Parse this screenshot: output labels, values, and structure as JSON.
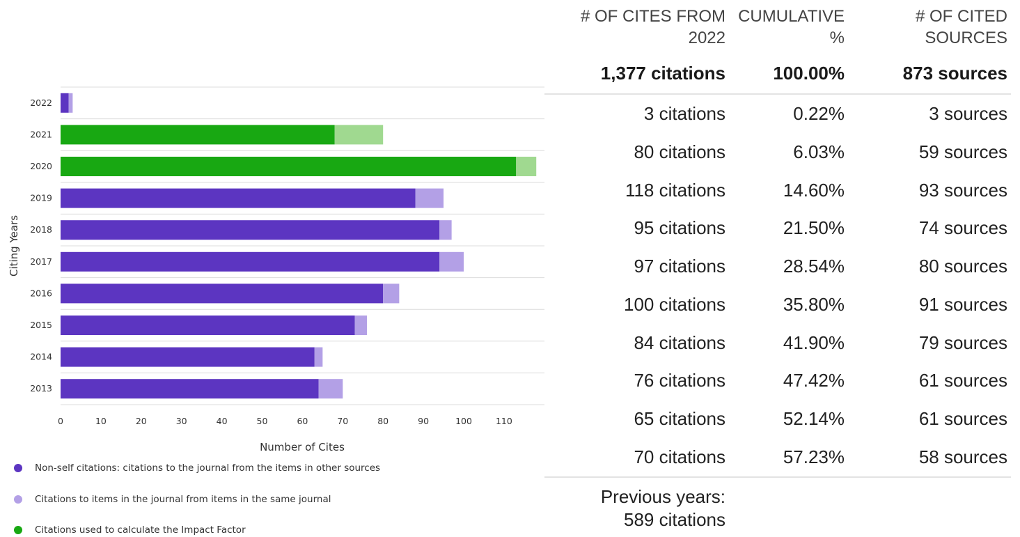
{
  "chart_data": {
    "type": "bar",
    "orientation": "horizontal",
    "stacked": true,
    "categories": [
      "2022",
      "2021",
      "2020",
      "2019",
      "2018",
      "2017",
      "2016",
      "2015",
      "2014",
      "2013"
    ],
    "series": [
      {
        "name": "Non-self citations: citations to the journal from the items in other sources",
        "values": [
          2,
          68,
          113,
          88,
          94,
          94,
          80,
          73,
          63,
          64
        ]
      },
      {
        "name": "Citations to items in the journal from items in the same journal",
        "values": [
          1,
          12,
          5,
          7,
          3,
          6,
          4,
          3,
          2,
          6
        ]
      }
    ],
    "impact_factor_years": [
      "2021",
      "2020"
    ],
    "xlabel": "Number of Cites",
    "ylabel": "Citing Years",
    "xlim": [
      0,
      120
    ],
    "xticks": [
      0,
      10,
      20,
      30,
      40,
      50,
      60,
      70,
      80,
      90,
      100,
      110
    ],
    "grid": "horizontal",
    "legend_position": "bottom-left"
  },
  "colors": {
    "non_self": "#5c35c1",
    "self": "#b3a0e6",
    "impact_factor": "#18a812",
    "impact_factor_self": "#a0d990"
  },
  "legend": [
    {
      "color_key": "non_self",
      "label": "Non-self citations: citations to the journal from the items in other sources"
    },
    {
      "color_key": "self",
      "label": "Citations to items in the journal from items in the same journal"
    },
    {
      "color_key": "impact_factor",
      "label": "Citations used to calculate the Impact Factor"
    }
  ],
  "table": {
    "headers": {
      "cites_line1": "# OF CITES FROM",
      "cites_line2": "2022",
      "cumulative_line1": "CUMULATIVE",
      "cumulative_line2": "%",
      "sources_line1": "# OF CITED",
      "sources_line2": "SOURCES"
    },
    "totals": {
      "cites": "1,377 citations",
      "cumulative": "100.00%",
      "sources": "873 sources"
    },
    "rows": [
      {
        "cites": "3 citations",
        "cumulative": "0.22%",
        "sources": "3 sources"
      },
      {
        "cites": "80 citations",
        "cumulative": "6.03%",
        "sources": "59 sources"
      },
      {
        "cites": "118 citations",
        "cumulative": "14.60%",
        "sources": "93 sources"
      },
      {
        "cites": "95 citations",
        "cumulative": "21.50%",
        "sources": "74 sources"
      },
      {
        "cites": "97 citations",
        "cumulative": "28.54%",
        "sources": "80 sources"
      },
      {
        "cites": "100 citations",
        "cumulative": "35.80%",
        "sources": "91 sources"
      },
      {
        "cites": "84 citations",
        "cumulative": "41.90%",
        "sources": "79 sources"
      },
      {
        "cites": "76 citations",
        "cumulative": "47.42%",
        "sources": "61 sources"
      },
      {
        "cites": "65 citations",
        "cumulative": "52.14%",
        "sources": "61 sources"
      },
      {
        "cites": "70 citations",
        "cumulative": "57.23%",
        "sources": "58 sources"
      }
    ],
    "previous_years_line1": "Previous years:",
    "previous_years_line2": "589 citations"
  }
}
